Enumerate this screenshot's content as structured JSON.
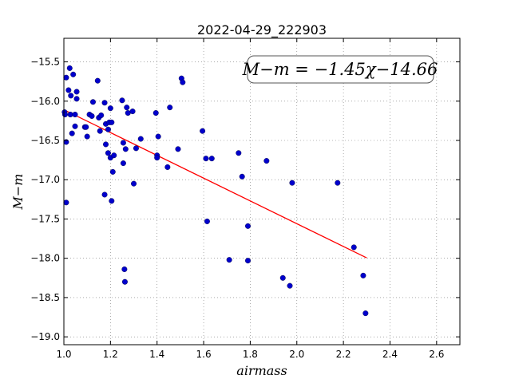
{
  "chart_data": {
    "type": "scatter",
    "title": "2022-04-29_222903",
    "xlabel": "airmass",
    "ylabel": "M−m",
    "xlim": [
      1.0,
      2.7
    ],
    "ylim": [
      -19.1,
      -15.2
    ],
    "y_inverted": false,
    "grid": true,
    "grid_style": "dotted",
    "x_ticks": [
      1.0,
      1.2,
      1.4,
      1.6,
      1.8,
      2.0,
      2.2,
      2.4,
      2.6
    ],
    "x_tick_labels": [
      "1.0",
      "1.2",
      "1.4",
      "1.6",
      "1.8",
      "2.0",
      "2.2",
      "2.4",
      "2.6"
    ],
    "y_ticks": [
      -15.5,
      -16.0,
      -16.5,
      -17.0,
      -17.5,
      -18.0,
      -18.5,
      -19.0
    ],
    "y_tick_labels": [
      "−15.5",
      "−16.0",
      "−16.5",
      "−17.0",
      "−17.5",
      "−18.0",
      "−18.5",
      "−19.0"
    ],
    "annotation": "M−m = −1.45χ−14.66",
    "annotation_position": "top-right",
    "fit": {
      "slope": -1.45,
      "intercept": -14.66,
      "x_range": [
        1.0,
        2.3
      ],
      "color": "#ff0000"
    },
    "points_color": "#0000cc",
    "points": [
      {
        "x": 1.01,
        "y": -15.7
      },
      {
        "x": 1.025,
        "y": -15.58
      },
      {
        "x": 1.04,
        "y": -15.66
      },
      {
        "x": 1.02,
        "y": -15.86
      },
      {
        "x": 1.03,
        "y": -15.93
      },
      {
        "x": 1.055,
        "y": -15.88
      },
      {
        "x": 1.055,
        "y": -15.97
      },
      {
        "x": 1.003,
        "y": -16.14
      },
      {
        "x": 1.005,
        "y": -16.17
      },
      {
        "x": 1.028,
        "y": -16.17
      },
      {
        "x": 1.048,
        "y": -16.17
      },
      {
        "x": 1.048,
        "y": -16.32
      },
      {
        "x": 1.035,
        "y": -16.41
      },
      {
        "x": 1.01,
        "y": -16.52
      },
      {
        "x": 1.09,
        "y": -16.33
      },
      {
        "x": 1.095,
        "y": -16.33
      },
      {
        "x": 1.1,
        "y": -16.45
      },
      {
        "x": 1.11,
        "y": -16.17
      },
      {
        "x": 1.12,
        "y": -16.19
      },
      {
        "x": 1.125,
        "y": -16.01
      },
      {
        "x": 1.145,
        "y": -15.74
      },
      {
        "x": 1.15,
        "y": -16.21
      },
      {
        "x": 1.16,
        "y": -16.18
      },
      {
        "x": 1.155,
        "y": -16.38
      },
      {
        "x": 1.175,
        "y": -16.02
      },
      {
        "x": 1.18,
        "y": -16.29
      },
      {
        "x": 1.195,
        "y": -16.27
      },
      {
        "x": 1.205,
        "y": -16.27
      },
      {
        "x": 1.2,
        "y": -16.09
      },
      {
        "x": 1.19,
        "y": -16.36
      },
      {
        "x": 1.18,
        "y": -16.55
      },
      {
        "x": 1.19,
        "y": -16.66
      },
      {
        "x": 1.2,
        "y": -16.72
      },
      {
        "x": 1.215,
        "y": -16.69
      },
      {
        "x": 1.21,
        "y": -16.9
      },
      {
        "x": 1.175,
        "y": -17.19
      },
      {
        "x": 1.205,
        "y": -17.27
      },
      {
        "x": 1.01,
        "y": -17.29
      },
      {
        "x": 1.25,
        "y": -15.99
      },
      {
        "x": 1.27,
        "y": -16.08
      },
      {
        "x": 1.275,
        "y": -16.15
      },
      {
        "x": 1.295,
        "y": -16.13
      },
      {
        "x": 1.33,
        "y": -16.48
      },
      {
        "x": 1.255,
        "y": -16.53
      },
      {
        "x": 1.265,
        "y": -16.61
      },
      {
        "x": 1.31,
        "y": -16.6
      },
      {
        "x": 1.255,
        "y": -16.79
      },
      {
        "x": 1.3,
        "y": -17.05
      },
      {
        "x": 1.26,
        "y": -18.14
      },
      {
        "x": 1.262,
        "y": -18.3
      },
      {
        "x": 1.395,
        "y": -16.15
      },
      {
        "x": 1.405,
        "y": -16.45
      },
      {
        "x": 1.4,
        "y": -16.69
      },
      {
        "x": 1.4,
        "y": -16.72
      },
      {
        "x": 1.455,
        "y": -16.08
      },
      {
        "x": 1.445,
        "y": -16.84
      },
      {
        "x": 1.505,
        "y": -15.71
      },
      {
        "x": 1.51,
        "y": -15.76
      },
      {
        "x": 1.49,
        "y": -16.61
      },
      {
        "x": 1.595,
        "y": -16.38
      },
      {
        "x": 1.61,
        "y": -16.73
      },
      {
        "x": 1.635,
        "y": -16.73
      },
      {
        "x": 1.615,
        "y": -17.53
      },
      {
        "x": 1.71,
        "y": -18.02
      },
      {
        "x": 1.75,
        "y": -16.66
      },
      {
        "x": 1.765,
        "y": -16.96
      },
      {
        "x": 1.79,
        "y": -17.59
      },
      {
        "x": 1.79,
        "y": -18.03
      },
      {
        "x": 1.87,
        "y": -16.76
      },
      {
        "x": 1.98,
        "y": -17.04
      },
      {
        "x": 1.94,
        "y": -18.25
      },
      {
        "x": 1.97,
        "y": -18.35
      },
      {
        "x": 2.175,
        "y": -17.04
      },
      {
        "x": 2.245,
        "y": -17.86
      },
      {
        "x": 2.285,
        "y": -18.22
      },
      {
        "x": 2.295,
        "y": -18.7
      }
    ]
  }
}
